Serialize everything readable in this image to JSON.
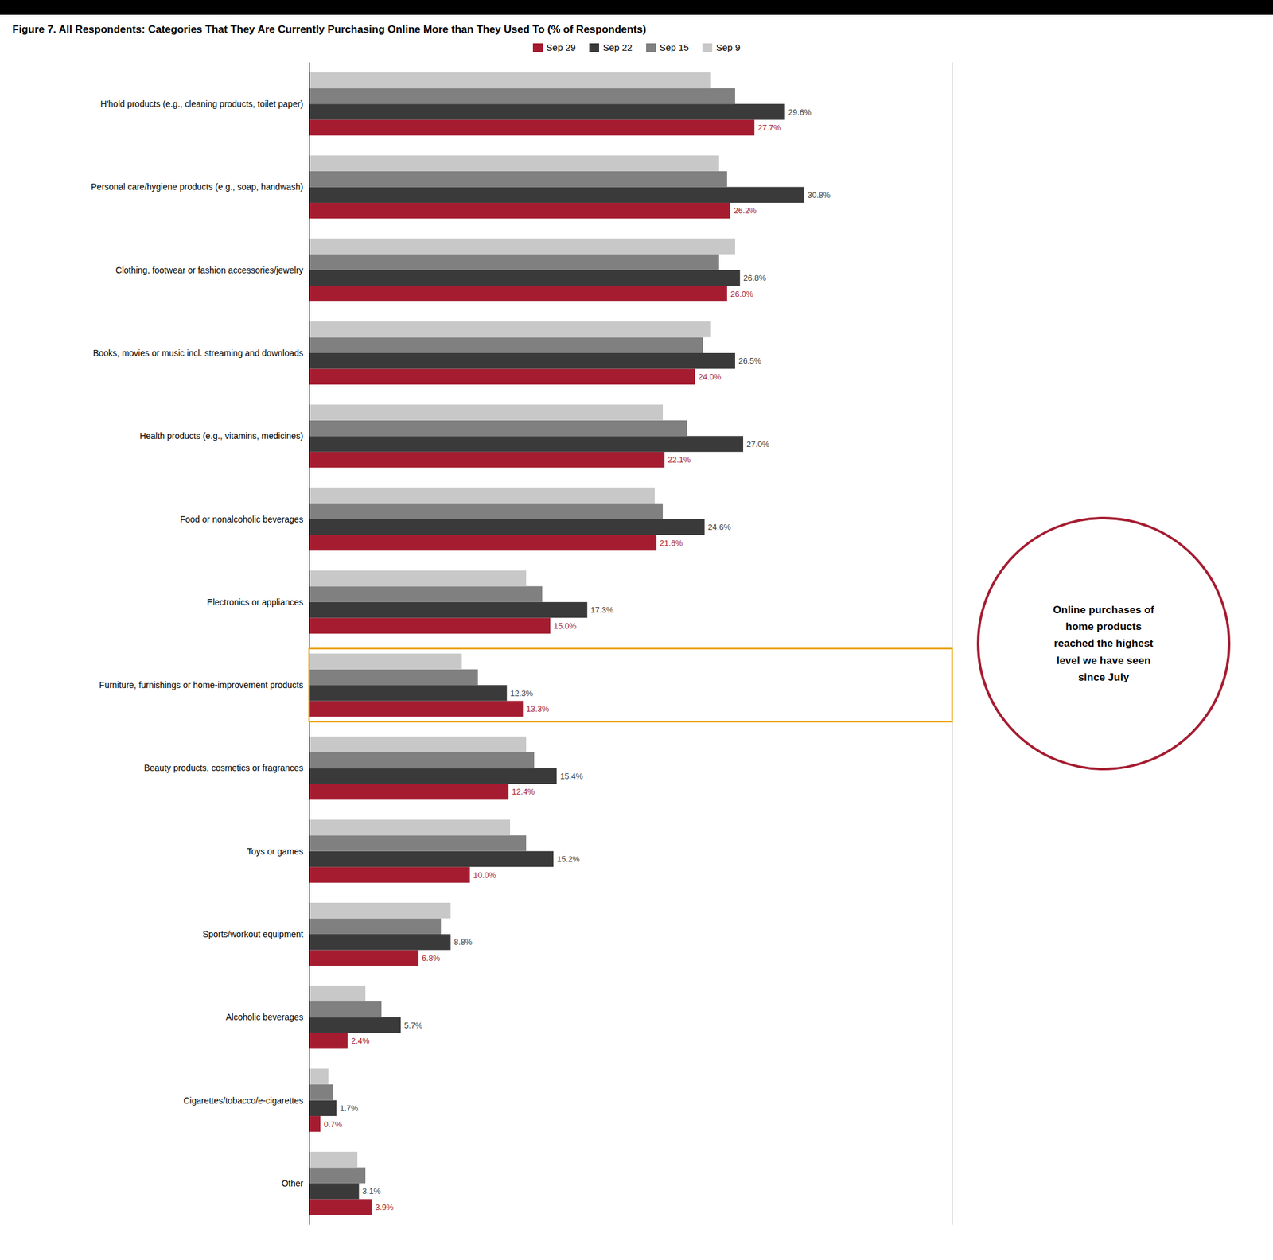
{
  "chart_data": {
    "type": "bar",
    "orientation": "horizontal",
    "title": "Figure 7. All Respondents: Categories That They Are Currently Purchasing Online More than They Used To (% of Respondents)",
    "categories": [
      "H'hold products (e.g., cleaning products, toilet paper)",
      "Personal care/hygiene products (e.g., soap, handwash)",
      "Clothing, footwear or fashion accessories/jewelry",
      "Books, movies or music incl. streaming and downloads",
      "Health products (e.g., vitamins, medicines)",
      "Food or nonalcoholic beverages",
      "Electronics or appliances",
      "Furniture, furnishings or home-improvement products",
      "Beauty products, cosmetics or fragrances",
      "Toys or games",
      "Sports/workout equipment",
      "Alcoholic beverages",
      "Cigarettes/tobacco/e-cigarettes",
      "Other"
    ],
    "series": [
      {
        "name": "Sep 29",
        "color": "#A51C30",
        "values": [
          27.7,
          26.2,
          26.0,
          24.0,
          22.1,
          21.6,
          15.0,
          13.3,
          12.4,
          10.0,
          6.8,
          2.4,
          0.7,
          3.9
        ],
        "value_labels": [
          "27.7%",
          "26.2%",
          "26.0%",
          "24.0%",
          "22.1%",
          "21.6%",
          "15.0%",
          "13.3%",
          "12.4%",
          "10.0%",
          "6.8%",
          "2.4%",
          "0.7%",
          "3.9%"
        ]
      },
      {
        "name": "Sep 22",
        "color": "#3A3A3A",
        "values": [
          29.6,
          30.8,
          26.8,
          26.5,
          27.0,
          24.6,
          17.3,
          12.3,
          15.4,
          15.2,
          8.8,
          5.7,
          1.7,
          3.1
        ],
        "value_labels": [
          "29.6%",
          "30.8%",
          "26.8%",
          "26.5%",
          "27.0%",
          "24.6%",
          "17.3%",
          "12.3%",
          "15.4%",
          "15.2%",
          "8.8%",
          "5.7%",
          "1.7%",
          "3.1%"
        ]
      },
      {
        "name": "Sep 15",
        "color": "#808080",
        "values": [
          26.5,
          26.0,
          25.5,
          24.5,
          23.5,
          22.0,
          14.5,
          10.5,
          14.0,
          13.5,
          8.2,
          4.5,
          1.5,
          3.5
        ]
      },
      {
        "name": "Sep 9",
        "color": "#C8C8C8",
        "values": [
          25.0,
          25.5,
          26.5,
          25.0,
          22.0,
          21.5,
          13.5,
          9.5,
          13.5,
          12.5,
          8.8,
          3.5,
          1.2,
          3.0
        ]
      }
    ],
    "xlim": [
      0,
      40
    ],
    "tick_labels": "y",
    "grid": false,
    "legend": "top",
    "data_labels": true,
    "annotations": [
      {
        "type": "circle",
        "text": "Online purchases of\nhome products\nreached the highest\nlevel we have seen\nsince July",
        "color": "#A51C30"
      },
      {
        "type": "box",
        "category": "Furniture, furnishings or home-improvement products",
        "color": "#E8A000"
      }
    ]
  }
}
